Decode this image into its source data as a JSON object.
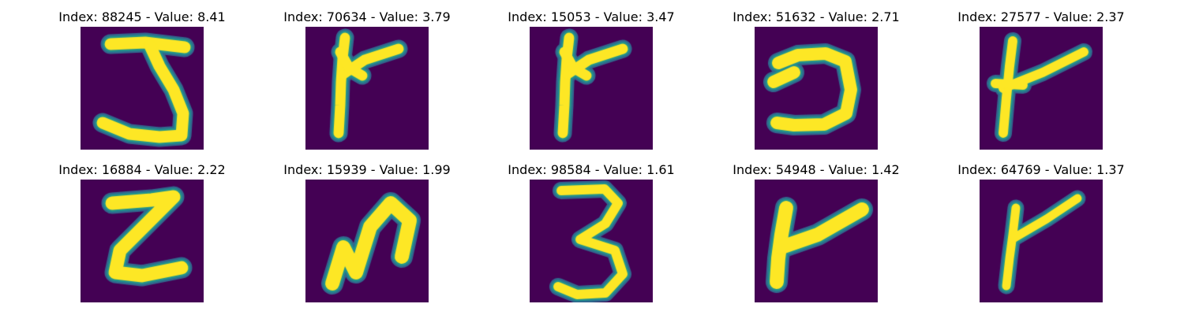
{
  "colors": {
    "background": "#440154",
    "low": "#31688e",
    "mid": "#21918c",
    "high": "#fde725"
  },
  "chart_data": {
    "type": "image_grid",
    "rows": 2,
    "cols": 5,
    "axes_visible": false,
    "colormap": "viridis",
    "panels": [
      {
        "title": "Index: 88245 - Value: 8.41",
        "index": 88245,
        "value": 8.41,
        "glyph": "J"
      },
      {
        "title": "Index: 70634 - Value: 3.79",
        "index": 70634,
        "value": 3.79,
        "glyph": "rune-y"
      },
      {
        "title": "Index: 15053 - Value: 3.47",
        "index": 15053,
        "value": 3.47,
        "glyph": "rune-y"
      },
      {
        "title": "Index: 51632 - Value: 2.71",
        "index": 51632,
        "value": 2.71,
        "glyph": "reversed-c"
      },
      {
        "title": "Index: 27577 - Value: 2.37",
        "index": 27577,
        "value": 2.37,
        "glyph": "rune-y-cross"
      },
      {
        "title": "Index: 16884 - Value: 2.22",
        "index": 16884,
        "value": 2.22,
        "glyph": "Z"
      },
      {
        "title": "Index: 15939 - Value: 1.99",
        "index": 15939,
        "value": 1.99,
        "glyph": "N-curve"
      },
      {
        "title": "Index: 98584 - Value: 1.61",
        "index": 98584,
        "value": 1.61,
        "glyph": "3"
      },
      {
        "title": "Index: 54948 - Value: 1.42",
        "index": 54948,
        "value": 1.42,
        "glyph": "rune-y-bold"
      },
      {
        "title": "Index: 64769 - Value: 1.37",
        "index": 64769,
        "value": 1.37,
        "glyph": "rune-y-thin"
      }
    ]
  }
}
